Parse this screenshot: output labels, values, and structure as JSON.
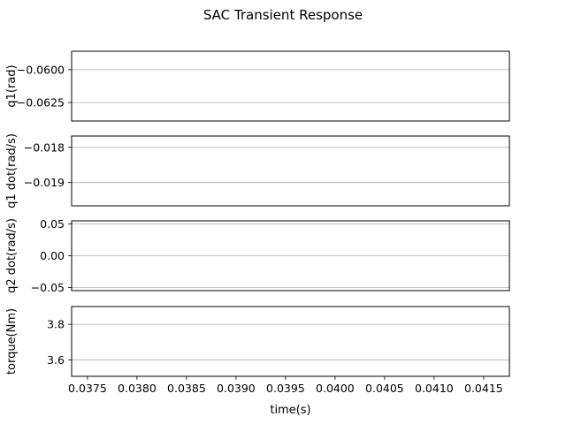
{
  "figure": {
    "title": "SAC Transient Response",
    "xlabel": "time(s)"
  },
  "colors": {
    "axes": "#000000",
    "grid": "#b0b0b0",
    "background": "#ffffff"
  },
  "chart_data": [
    {
      "type": "line",
      "ylabel": "q1(rad)",
      "ylim": [
        -0.0639,
        -0.0586
      ],
      "yticks": [
        -0.0625,
        -0.06
      ],
      "ytick_labels": [
        "−0.0625",
        "−0.0600"
      ],
      "xlim": [
        0.03734,
        0.04176
      ],
      "grid": "y",
      "series": []
    },
    {
      "type": "line",
      "ylabel": "q1 dot(rad/s)",
      "ylim": [
        -0.01966,
        -0.01768
      ],
      "yticks": [
        -0.019,
        -0.018
      ],
      "ytick_labels": [
        "−0.019",
        "−0.018"
      ],
      "xlim": [
        0.03734,
        0.04176
      ],
      "grid": "y",
      "series": []
    },
    {
      "type": "line",
      "ylabel": "q2 dot(rad/s)",
      "ylim": [
        -0.055,
        0.055
      ],
      "yticks": [
        -0.05,
        0.0,
        0.05
      ],
      "ytick_labels": [
        "−0.05",
        "0.00",
        "0.05"
      ],
      "xlim": [
        0.03734,
        0.04176
      ],
      "grid": "y",
      "series": []
    },
    {
      "type": "line",
      "ylabel": "torque(Nm)",
      "ylim": [
        3.508,
        3.9
      ],
      "yticks": [
        3.6,
        3.8
      ],
      "ytick_labels": [
        "3.6",
        "3.8"
      ],
      "xlim": [
        0.03734,
        0.04176
      ],
      "xticks": [
        0.0375,
        0.038,
        0.0385,
        0.039,
        0.0395,
        0.04,
        0.0405,
        0.041,
        0.0415
      ],
      "xtick_labels": [
        "0.0375",
        "0.0380",
        "0.0385",
        "0.0390",
        "0.0395",
        "0.0400",
        "0.0405",
        "0.0410",
        "0.0415"
      ],
      "grid": "y",
      "series": []
    }
  ]
}
